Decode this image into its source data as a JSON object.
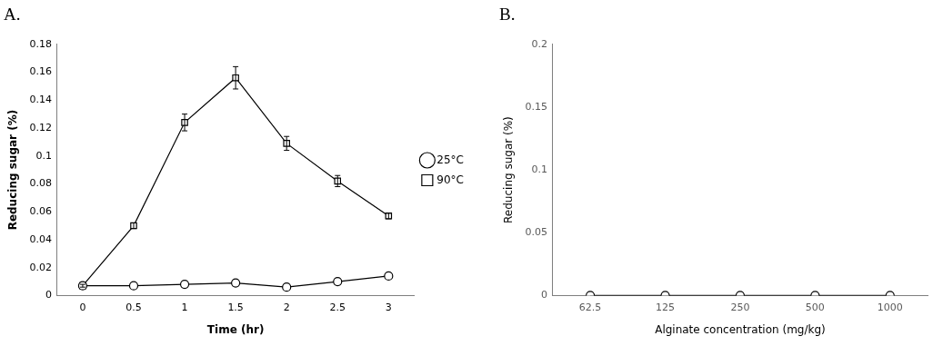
{
  "chart_data": [
    {
      "type": "line",
      "title": "A.",
      "x_label": "Time (hr)",
      "y_label": "Reducing sugar (%)",
      "categories": [
        "0",
        "0.5",
        "1",
        "1.5",
        "2",
        "2.5",
        "3"
      ],
      "series": [
        {
          "name": "25°C",
          "color": "#000000",
          "marker": "circle",
          "line_style": "solid",
          "values": [
            0.007,
            0.007,
            0.008,
            0.009,
            0.006,
            0.01,
            0.014
          ]
        },
        {
          "name": "90°C",
          "color": "#000000",
          "marker": "square",
          "line_style": "solid",
          "values": [
            0.007,
            0.05,
            0.124,
            0.156,
            0.109,
            0.082,
            0.057
          ],
          "errors": [
            0.001,
            0.002,
            0.006,
            0.008,
            0.005,
            0.004,
            0.002
          ]
        }
      ],
      "ylim": [
        0,
        0.18
      ],
      "yticks": [
        0,
        0.02,
        0.04,
        0.06,
        0.08,
        0.1,
        0.12,
        0.14,
        0.16,
        0.18
      ],
      "grid": false,
      "legend": "right"
    },
    {
      "type": "line",
      "title": "B.",
      "x_label": "Alginate concentration (mg/kg)",
      "y_label": "Reducing sugar (%)",
      "categories": [
        "62.5",
        "125",
        "250",
        "500",
        "1000"
      ],
      "values": [
        0,
        0,
        0,
        0,
        0
      ],
      "color": "#000000",
      "marker": "circle",
      "line_style": "solid",
      "ylim": [
        0,
        0.2
      ],
      "yticks": [
        0,
        0.05,
        0.1,
        0.15,
        0.2
      ],
      "grid": false
    }
  ]
}
